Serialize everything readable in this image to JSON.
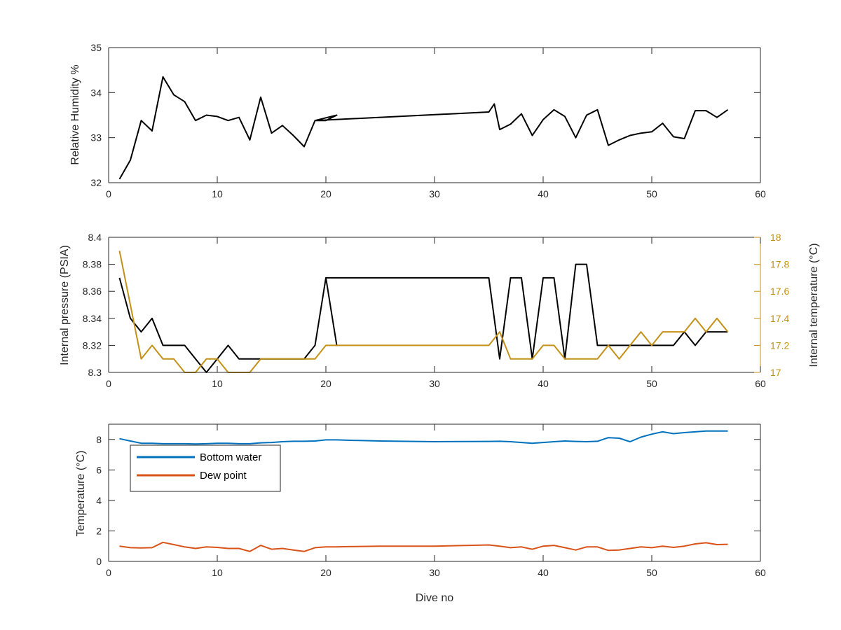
{
  "chart_data": [
    {
      "type": "line",
      "ylabel": "Relative Humidity %",
      "xlim": [
        0,
        60
      ],
      "ylim": [
        32,
        35
      ],
      "xticks": [
        0,
        10,
        20,
        30,
        40,
        50,
        60
      ],
      "yticks": [
        32,
        33,
        34,
        35
      ],
      "series": [
        {
          "color": "#000000",
          "points": [
            [
              1,
              32.08
            ],
            [
              2,
              32.5
            ],
            [
              3,
              33.38
            ],
            [
              4,
              33.15
            ],
            [
              5,
              34.35
            ],
            [
              6,
              33.95
            ],
            [
              7,
              33.8
            ],
            [
              8,
              33.38
            ],
            [
              9,
              33.5
            ],
            [
              10,
              33.47
            ],
            [
              11,
              33.38
            ],
            [
              12,
              33.45
            ],
            [
              13,
              32.95
            ],
            [
              14,
              33.9
            ],
            [
              15,
              33.1
            ],
            [
              16,
              33.27
            ],
            [
              17,
              33.05
            ],
            [
              18,
              32.8
            ],
            [
              19,
              33.38
            ],
            [
              20,
              33.38
            ],
            [
              21,
              33.5
            ],
            [
              19,
              33.38
            ],
            [
              35,
              33.57
            ],
            [
              35.5,
              33.75
            ],
            [
              36,
              33.18
            ],
            [
              37,
              33.3
            ],
            [
              38,
              33.53
            ],
            [
              39,
              33.05
            ],
            [
              40,
              33.4
            ],
            [
              41,
              33.62
            ],
            [
              42,
              33.47
            ],
            [
              43,
              33.0
            ],
            [
              44,
              33.5
            ],
            [
              45,
              33.62
            ],
            [
              46,
              32.83
            ],
            [
              47,
              32.95
            ],
            [
              48,
              33.05
            ],
            [
              49,
              33.1
            ],
            [
              50,
              33.13
            ],
            [
              51,
              33.32
            ],
            [
              52,
              33.02
            ],
            [
              53,
              32.98
            ],
            [
              54,
              33.6
            ],
            [
              55,
              33.6
            ],
            [
              56,
              33.45
            ],
            [
              57,
              33.62
            ]
          ]
        }
      ]
    },
    {
      "type": "line",
      "ylabel": "Internal pressure (PSIA)",
      "y2label": "Internal temperature (°C)",
      "xlim": [
        0,
        60
      ],
      "ylim": [
        8.3,
        8.4
      ],
      "y2lim": [
        17,
        18
      ],
      "xticks": [
        0,
        10,
        20,
        30,
        40,
        50,
        60
      ],
      "yticks": [
        8.3,
        8.32,
        8.34,
        8.36,
        8.38,
        8.4
      ],
      "yticklabels": [
        "8.3",
        "8.32",
        "8.34",
        "8.36",
        "8.38",
        "8.4"
      ],
      "y2ticks": [
        17,
        17.2,
        17.4,
        17.6,
        17.8,
        18
      ],
      "y2ticklabels": [
        "17",
        "17.2",
        "17.4",
        "17.6",
        "17.8",
        "18"
      ],
      "y2color": "#C49117",
      "series": [
        {
          "axis": "left",
          "color": "#000000",
          "points": [
            [
              1,
              8.37
            ],
            [
              2,
              8.34
            ],
            [
              3,
              8.33
            ],
            [
              4,
              8.34
            ],
            [
              5,
              8.32
            ],
            [
              6,
              8.32
            ],
            [
              7,
              8.32
            ],
            [
              8,
              8.31
            ],
            [
              9,
              8.3
            ],
            [
              10,
              8.31
            ],
            [
              11,
              8.32
            ],
            [
              12,
              8.31
            ],
            [
              13,
              8.31
            ],
            [
              14,
              8.31
            ],
            [
              15,
              8.31
            ],
            [
              16,
              8.31
            ],
            [
              17,
              8.31
            ],
            [
              18,
              8.31
            ],
            [
              19,
              8.32
            ],
            [
              20,
              8.37
            ],
            [
              21,
              8.32
            ],
            [
              20,
              8.37
            ],
            [
              35,
              8.37
            ],
            [
              36,
              8.31
            ],
            [
              37,
              8.37
            ],
            [
              38,
              8.37
            ],
            [
              39,
              8.31
            ],
            [
              40,
              8.37
            ],
            [
              41,
              8.37
            ],
            [
              42,
              8.31
            ],
            [
              43,
              8.38
            ],
            [
              44,
              8.38
            ],
            [
              45,
              8.32
            ],
            [
              46,
              8.32
            ],
            [
              47,
              8.32
            ],
            [
              48,
              8.32
            ],
            [
              49,
              8.32
            ],
            [
              50,
              8.32
            ],
            [
              51,
              8.32
            ],
            [
              52,
              8.32
            ],
            [
              53,
              8.33
            ],
            [
              54,
              8.32
            ],
            [
              55,
              8.33
            ],
            [
              56,
              8.33
            ],
            [
              57,
              8.33
            ]
          ]
        },
        {
          "axis": "right",
          "color": "#C49117",
          "points": [
            [
              1,
              17.9
            ],
            [
              2,
              17.5
            ],
            [
              3,
              17.1
            ],
            [
              4,
              17.2
            ],
            [
              5,
              17.1
            ],
            [
              6,
              17.1
            ],
            [
              7,
              17.0
            ],
            [
              8,
              17.0
            ],
            [
              9,
              17.1
            ],
            [
              10,
              17.1
            ],
            [
              11,
              17.0
            ],
            [
              12,
              17.0
            ],
            [
              13,
              17.0
            ],
            [
              14,
              17.1
            ],
            [
              15,
              17.1
            ],
            [
              16,
              17.1
            ],
            [
              17,
              17.1
            ],
            [
              18,
              17.1
            ],
            [
              19,
              17.1
            ],
            [
              20,
              17.2
            ],
            [
              35,
              17.2
            ],
            [
              36,
              17.3
            ],
            [
              37,
              17.1
            ],
            [
              38,
              17.1
            ],
            [
              39,
              17.1
            ],
            [
              40,
              17.2
            ],
            [
              41,
              17.2
            ],
            [
              42,
              17.1
            ],
            [
              43,
              17.1
            ],
            [
              44,
              17.1
            ],
            [
              45,
              17.1
            ],
            [
              46,
              17.2
            ],
            [
              47,
              17.1
            ],
            [
              48,
              17.2
            ],
            [
              49,
              17.3
            ],
            [
              50,
              17.2
            ],
            [
              51,
              17.3
            ],
            [
              52,
              17.3
            ],
            [
              53,
              17.3
            ],
            [
              54,
              17.4
            ],
            [
              55,
              17.3
            ],
            [
              56,
              17.4
            ],
            [
              57,
              17.3
            ]
          ]
        }
      ]
    },
    {
      "type": "line",
      "ylabel": "Temperature (°C)",
      "xlabel": "Dive no",
      "xlim": [
        0,
        60
      ],
      "ylim": [
        0,
        9
      ],
      "xticks": [
        0,
        10,
        20,
        30,
        40,
        50,
        60
      ],
      "yticks": [
        0,
        2,
        4,
        6,
        8
      ],
      "legend": "top-left",
      "series": [
        {
          "name": "Bottom water",
          "color": "#0072BD",
          "points": [
            [
              1,
              8.05
            ],
            [
              2,
              7.9
            ],
            [
              3,
              7.75
            ],
            [
              4,
              7.75
            ],
            [
              5,
              7.72
            ],
            [
              6,
              7.72
            ],
            [
              7,
              7.72
            ],
            [
              8,
              7.7
            ],
            [
              9,
              7.72
            ],
            [
              10,
              7.75
            ],
            [
              11,
              7.75
            ],
            [
              12,
              7.72
            ],
            [
              13,
              7.72
            ],
            [
              14,
              7.78
            ],
            [
              15,
              7.8
            ],
            [
              16,
              7.85
            ],
            [
              17,
              7.88
            ],
            [
              18,
              7.88
            ],
            [
              19,
              7.9
            ],
            [
              20,
              7.97
            ],
            [
              21,
              7.97
            ],
            [
              22,
              7.95
            ],
            [
              25,
              7.9
            ],
            [
              30,
              7.85
            ],
            [
              35,
              7.87
            ],
            [
              36,
              7.88
            ],
            [
              37,
              7.85
            ],
            [
              38,
              7.8
            ],
            [
              39,
              7.75
            ],
            [
              40,
              7.8
            ],
            [
              41,
              7.85
            ],
            [
              42,
              7.9
            ],
            [
              43,
              7.87
            ],
            [
              44,
              7.85
            ],
            [
              45,
              7.88
            ],
            [
              46,
              8.12
            ],
            [
              47,
              8.08
            ],
            [
              48,
              7.85
            ],
            [
              49,
              8.15
            ],
            [
              50,
              8.35
            ],
            [
              51,
              8.5
            ],
            [
              52,
              8.38
            ],
            [
              53,
              8.45
            ],
            [
              54,
              8.5
            ],
            [
              55,
              8.55
            ],
            [
              56,
              8.55
            ],
            [
              57,
              8.55
            ]
          ]
        },
        {
          "name": "Dew point",
          "color": "#D95319",
          "points": [
            [
              1,
              1.0
            ],
            [
              2,
              0.9
            ],
            [
              3,
              0.88
            ],
            [
              4,
              0.9
            ],
            [
              5,
              1.25
            ],
            [
              6,
              1.1
            ],
            [
              7,
              0.95
            ],
            [
              8,
              0.85
            ],
            [
              9,
              0.95
            ],
            [
              10,
              0.92
            ],
            [
              11,
              0.85
            ],
            [
              12,
              0.85
            ],
            [
              13,
              0.65
            ],
            [
              14,
              1.05
            ],
            [
              15,
              0.8
            ],
            [
              16,
              0.85
            ],
            [
              17,
              0.75
            ],
            [
              18,
              0.65
            ],
            [
              19,
              0.9
            ],
            [
              20,
              0.95
            ],
            [
              21,
              0.95
            ],
            [
              22,
              0.97
            ],
            [
              25,
              1.0
            ],
            [
              30,
              1.0
            ],
            [
              35,
              1.08
            ],
            [
              36,
              1.0
            ],
            [
              37,
              0.9
            ],
            [
              38,
              0.95
            ],
            [
              39,
              0.8
            ],
            [
              40,
              1.0
            ],
            [
              41,
              1.05
            ],
            [
              42,
              0.9
            ],
            [
              43,
              0.75
            ],
            [
              44,
              0.95
            ],
            [
              45,
              0.95
            ],
            [
              46,
              0.72
            ],
            [
              47,
              0.75
            ],
            [
              48,
              0.85
            ],
            [
              49,
              0.95
            ],
            [
              50,
              0.9
            ],
            [
              51,
              1.0
            ],
            [
              52,
              0.92
            ],
            [
              53,
              1.0
            ],
            [
              54,
              1.15
            ],
            [
              55,
              1.22
            ],
            [
              56,
              1.1
            ],
            [
              57,
              1.12
            ]
          ]
        }
      ]
    }
  ]
}
